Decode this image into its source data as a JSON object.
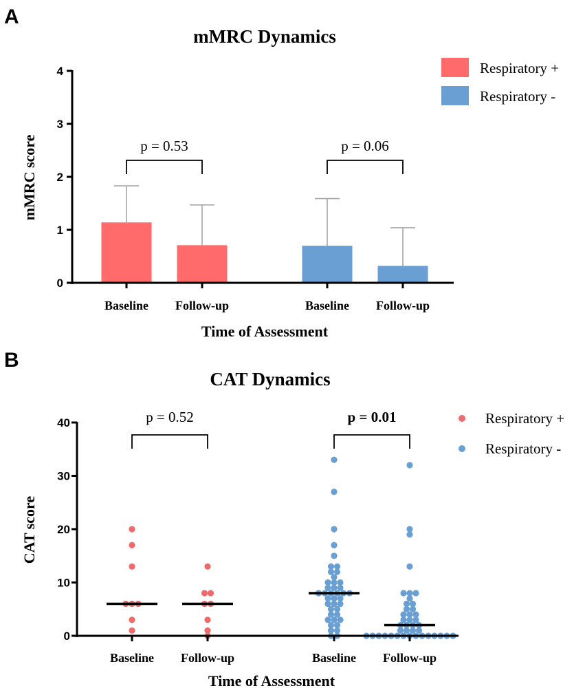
{
  "colors": {
    "red": "#FF6B6B",
    "blue": "#6A9FD3",
    "axis": "#000000",
    "error_bar": "#A6A6A6",
    "dot_red": "#EE6B6B",
    "dot_blue": "#6A9FD3"
  },
  "chart_data": [
    {
      "panel_label": "A",
      "type": "bar",
      "title": "mMRC Dynamics",
      "xlabel": "Time of Assessment",
      "ylabel": "mMRC score",
      "ylim": [
        0,
        4
      ],
      "yticks": [
        "0",
        "1",
        "2",
        "3",
        "4"
      ],
      "categories": [
        "Baseline",
        "Follow-up",
        "Baseline",
        "Follow-up"
      ],
      "series": [
        {
          "name": "Respiratory +",
          "color_key": "red",
          "means": [
            1.14,
            0.71
          ],
          "sd_upper": [
            1.83,
            1.47
          ]
        },
        {
          "name": "Respiratory -",
          "color_key": "blue",
          "means": [
            0.7,
            0.32
          ],
          "sd_upper": [
            1.59,
            1.04
          ]
        }
      ],
      "comparisons": [
        {
          "group": "Respiratory +",
          "label": "p = 0.53",
          "bold": false
        },
        {
          "group": "Respiratory -",
          "label": "p = 0.06",
          "bold": false
        }
      ],
      "legend": [
        "Respiratory +",
        "Respiratory -"
      ],
      "legend_position": "top-right"
    },
    {
      "panel_label": "B",
      "type": "scatter",
      "title": "CAT Dynamics",
      "xlabel": "Time of Assessment",
      "ylabel": "CAT score",
      "ylim": [
        0,
        40
      ],
      "yticks": [
        "0",
        "10",
        "20",
        "30",
        "40"
      ],
      "categories": [
        "Baseline",
        "Follow-up",
        "Baseline",
        "Follow-up"
      ],
      "series": [
        {
          "name": "Respiratory +",
          "color_key": "dot_red",
          "baseline_values": [
            20,
            17,
            13,
            6,
            6,
            6,
            3,
            1
          ],
          "followup_values": [
            13,
            8,
            8,
            6,
            6,
            3,
            1,
            0
          ],
          "medians": [
            6,
            6
          ]
        },
        {
          "name": "Respiratory -",
          "color_key": "dot_blue",
          "baseline_values": [
            33,
            27,
            20,
            17,
            15,
            13,
            13,
            12,
            12,
            11,
            10,
            10,
            10,
            9,
            9,
            9,
            8,
            8,
            8,
            8,
            8,
            8,
            7,
            7,
            7,
            6,
            6,
            6,
            5,
            5,
            4,
            4,
            3,
            3,
            3,
            2,
            2,
            1,
            1,
            0,
            0
          ],
          "followup_values": [
            32,
            20,
            19,
            13,
            8,
            8,
            8,
            7,
            6,
            6,
            5,
            5,
            4,
            4,
            4,
            3,
            3,
            3,
            2,
            2,
            2,
            2,
            1,
            1,
            1,
            1,
            0,
            0,
            0,
            0,
            0,
            0,
            0,
            0,
            0,
            0,
            0,
            0,
            0,
            0,
            0
          ],
          "medians": [
            8,
            2
          ]
        }
      ],
      "comparisons": [
        {
          "group": "Respiratory +",
          "label": "p = 0.52",
          "bold": false
        },
        {
          "group": "Respiratory -",
          "label": "p = 0.01",
          "bold": true
        }
      ],
      "legend": [
        "Respiratory +",
        "Respiratory -"
      ],
      "legend_position": "top-right"
    }
  ]
}
